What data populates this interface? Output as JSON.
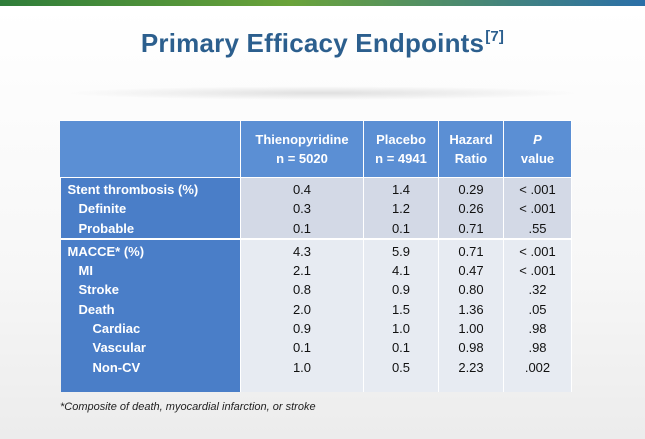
{
  "slide": {
    "title": "Primary Efficacy Endpoints",
    "title_ref": "[7]",
    "footnote": "*Composite of death, myocardial infarction, or stroke"
  },
  "table": {
    "headers": [
      {
        "line1": "",
        "line2": ""
      },
      {
        "line1": "Thienopyridine",
        "line2": "n = 5020"
      },
      {
        "line1": "Placebo",
        "line2": "n = 4941"
      },
      {
        "line1": "Hazard",
        "line2": "Ratio"
      },
      {
        "line1": "P",
        "line2": "value"
      }
    ],
    "groups": [
      {
        "rows": [
          {
            "label": "Stent thrombosis (%)",
            "thieno": "0.4",
            "placebo": "1.4",
            "hr": "0.29",
            "p": "< .001"
          },
          {
            "label": "Definite",
            "thieno": "0.3",
            "placebo": "1.2",
            "hr": "0.26",
            "p": "< .001"
          },
          {
            "label": "Probable",
            "thieno": "0.1",
            "placebo": "0.1",
            "hr": "0.71",
            "p": ".55"
          }
        ]
      },
      {
        "rows": [
          {
            "label": "MACCE*  (%)",
            "thieno": "4.3",
            "placebo": "5.9",
            "hr": "0.71",
            "p": "< .001"
          },
          {
            "label": "MI",
            "thieno": "2.1",
            "placebo": "4.1",
            "hr": "0.47",
            "p": "< .001"
          },
          {
            "label": "Stroke",
            "thieno": "0.8",
            "placebo": "0.9",
            "hr": "0.80",
            "p": ".32"
          },
          {
            "label": "Death",
            "thieno": "2.0",
            "placebo": "1.5",
            "hr": "1.36",
            "p": ".05"
          },
          {
            "label": "Cardiac",
            "thieno": "0.9",
            "placebo": "1.0",
            "hr": "1.00",
            "p": ".98"
          },
          {
            "label": "Vascular",
            "thieno": "0.1",
            "placebo": "0.1",
            "hr": "0.98",
            "p": ".98"
          },
          {
            "label": "Non-CV",
            "thieno": "1.0",
            "placebo": "0.5",
            "hr": "2.23",
            "p": ".002"
          }
        ]
      }
    ]
  }
}
